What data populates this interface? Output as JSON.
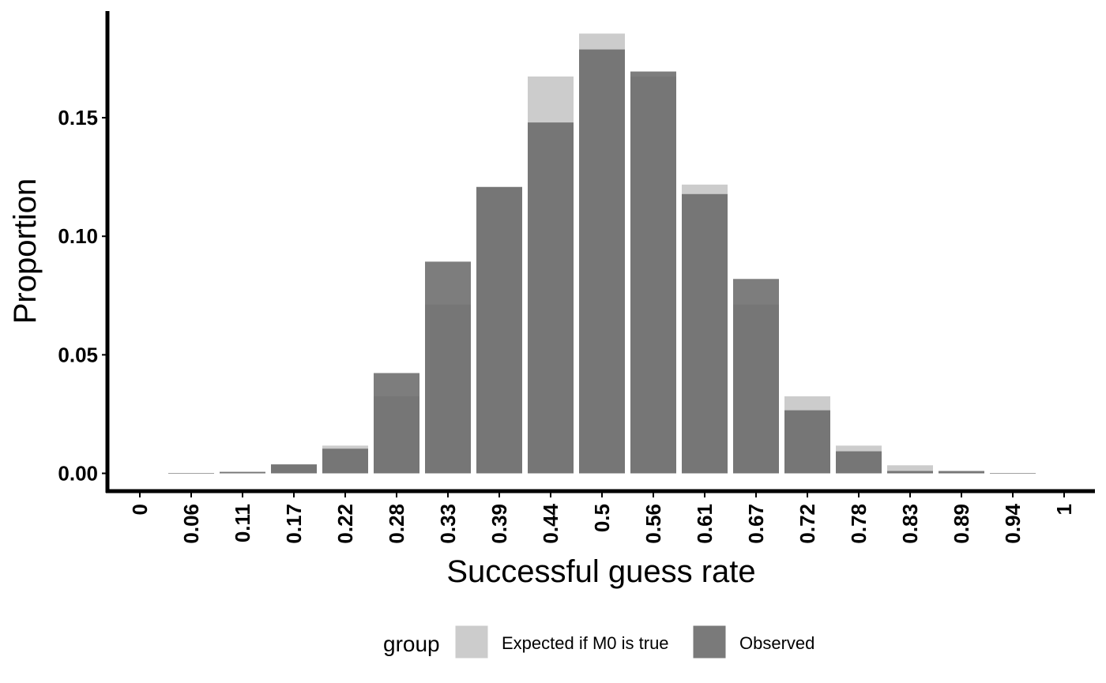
{
  "chart_data": {
    "type": "bar",
    "title": "",
    "xlabel": "Successful guess rate",
    "ylabel": "Proportion",
    "categories": [
      "0",
      "0.06",
      "0.11",
      "0.17",
      "0.22",
      "0.28",
      "0.33",
      "0.39",
      "0.44",
      "0.5",
      "0.56",
      "0.61",
      "0.67",
      "0.72",
      "0.78",
      "0.83",
      "0.89",
      "0.94",
      "1"
    ],
    "series": [
      {
        "name": "Expected if M0 is true",
        "color": "#cccccc",
        "values": [
          0.0,
          0.0001,
          0.0007,
          0.0036,
          0.0117,
          0.0325,
          0.0712,
          0.1208,
          0.1674,
          0.1855,
          0.1674,
          0.1218,
          0.0712,
          0.0325,
          0.0117,
          0.0034,
          0.0007,
          0.0001,
          0.0
        ]
      },
      {
        "name": "Observed",
        "color": "#666666",
        "values": [
          0.0,
          0.0001,
          0.0006,
          0.0038,
          0.0104,
          0.0423,
          0.0893,
          0.1208,
          0.148,
          0.1788,
          0.1695,
          0.1178,
          0.082,
          0.0266,
          0.0093,
          0.001,
          0.001,
          0.0001,
          0.0
        ]
      }
    ],
    "yticks": [
      "0.00",
      "0.05",
      "0.10",
      "0.15"
    ],
    "ylim": [
      -0.0075,
      0.195
    ],
    "grid": false,
    "legend_title": "group",
    "legend_position": "bottom"
  }
}
